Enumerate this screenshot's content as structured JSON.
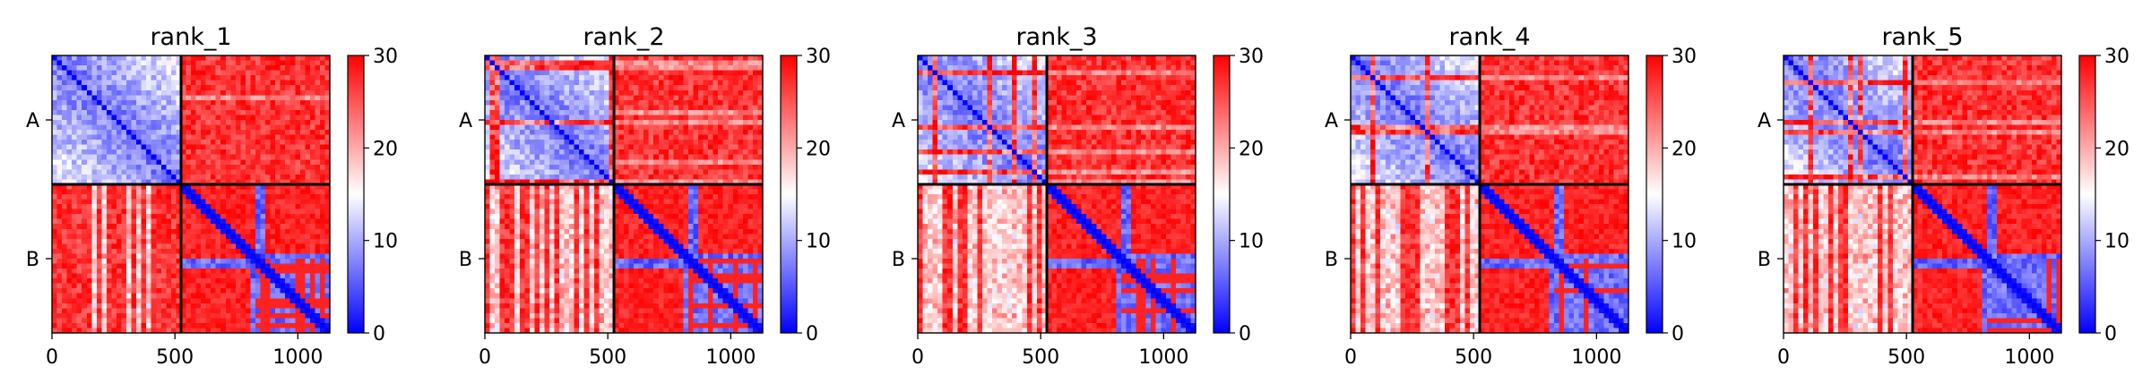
{
  "chart_data": [
    {
      "type": "heatmap",
      "title": "rank_1",
      "x_ticks": [
        0,
        500,
        1000
      ],
      "xlim": [
        0,
        1130
      ],
      "y_ticks": [
        "A",
        "B"
      ],
      "chain_boundary": 525,
      "total_length": 1130,
      "colorbar": {
        "min": 0,
        "max": 30,
        "ticks": [
          0,
          10,
          20,
          30
        ]
      },
      "variant": 0
    },
    {
      "type": "heatmap",
      "title": "rank_2",
      "x_ticks": [
        0,
        500,
        1000
      ],
      "xlim": [
        0,
        1130
      ],
      "y_ticks": [
        "A",
        "B"
      ],
      "chain_boundary": 525,
      "total_length": 1130,
      "colorbar": {
        "min": 0,
        "max": 30,
        "ticks": [
          0,
          10,
          20,
          30
        ]
      },
      "variant": 1
    },
    {
      "type": "heatmap",
      "title": "rank_3",
      "x_ticks": [
        0,
        500,
        1000
      ],
      "xlim": [
        0,
        1130
      ],
      "y_ticks": [
        "A",
        "B"
      ],
      "chain_boundary": 525,
      "total_length": 1130,
      "colorbar": {
        "min": 0,
        "max": 30,
        "ticks": [
          0,
          10,
          20,
          30
        ]
      },
      "variant": 2
    },
    {
      "type": "heatmap",
      "title": "rank_4",
      "x_ticks": [
        0,
        500,
        1000
      ],
      "xlim": [
        0,
        1130
      ],
      "y_ticks": [
        "A",
        "B"
      ],
      "chain_boundary": 525,
      "total_length": 1130,
      "colorbar": {
        "min": 0,
        "max": 30,
        "ticks": [
          0,
          10,
          20,
          30
        ]
      },
      "variant": 3
    },
    {
      "type": "heatmap",
      "title": "rank_5",
      "x_ticks": [
        0,
        500,
        1000
      ],
      "xlim": [
        0,
        1130
      ],
      "y_ticks": [
        "A",
        "B"
      ],
      "chain_boundary": 525,
      "total_length": 1130,
      "colorbar": {
        "min": 0,
        "max": 30,
        "ticks": [
          0,
          10,
          20,
          30
        ]
      },
      "variant": 4
    }
  ],
  "colors": {
    "low": "#0000ff",
    "mid": "#ffffff",
    "high": "#ff0000",
    "frame": "#000000"
  }
}
